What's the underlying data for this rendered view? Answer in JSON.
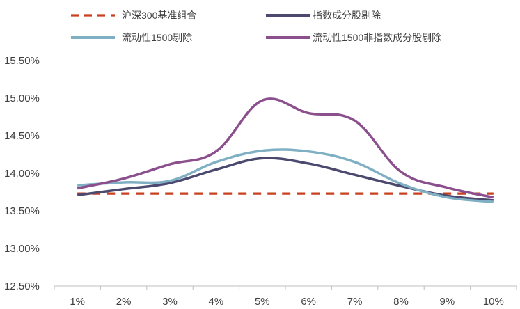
{
  "chart_data": {
    "type": "line",
    "title": "",
    "xlabel": "",
    "ylabel": "",
    "categories": [
      "1%",
      "2%",
      "3%",
      "4%",
      "5%",
      "6%",
      "7%",
      "8%",
      "9%",
      "10%"
    ],
    "yticks": [
      "12.50%",
      "13.00%",
      "13.50%",
      "14.00%",
      "14.50%",
      "15.00%",
      "15.50%"
    ],
    "ytick_values": [
      12.5,
      13.0,
      13.5,
      14.0,
      14.5,
      15.0,
      15.5
    ],
    "ylim": [
      12.5,
      15.5
    ],
    "grid": false,
    "legend_position": "top",
    "series": [
      {
        "name": "沪深300基准组合",
        "color": "#C8401F",
        "style": "dashed",
        "values": [
          13.73,
          13.73,
          13.73,
          13.73,
          13.73,
          13.73,
          13.73,
          13.73,
          13.73,
          13.73
        ]
      },
      {
        "name": "指数成分股剔除",
        "color": "#4B4A6E",
        "style": "solid",
        "values": [
          13.71,
          13.79,
          13.87,
          14.05,
          14.2,
          14.13,
          13.98,
          13.83,
          13.7,
          13.64
        ]
      },
      {
        "name": "流动性1500剔除",
        "color": "#7FAFC3",
        "style": "solid",
        "values": [
          13.84,
          13.88,
          13.9,
          14.15,
          14.3,
          14.29,
          14.15,
          13.86,
          13.68,
          13.62
        ]
      },
      {
        "name": "流动性1500非指数成分股剔除",
        "color": "#8A4F8C",
        "style": "solid",
        "values": [
          13.8,
          13.93,
          14.12,
          14.29,
          14.97,
          14.8,
          14.7,
          14.02,
          13.81,
          13.68
        ]
      }
    ]
  }
}
